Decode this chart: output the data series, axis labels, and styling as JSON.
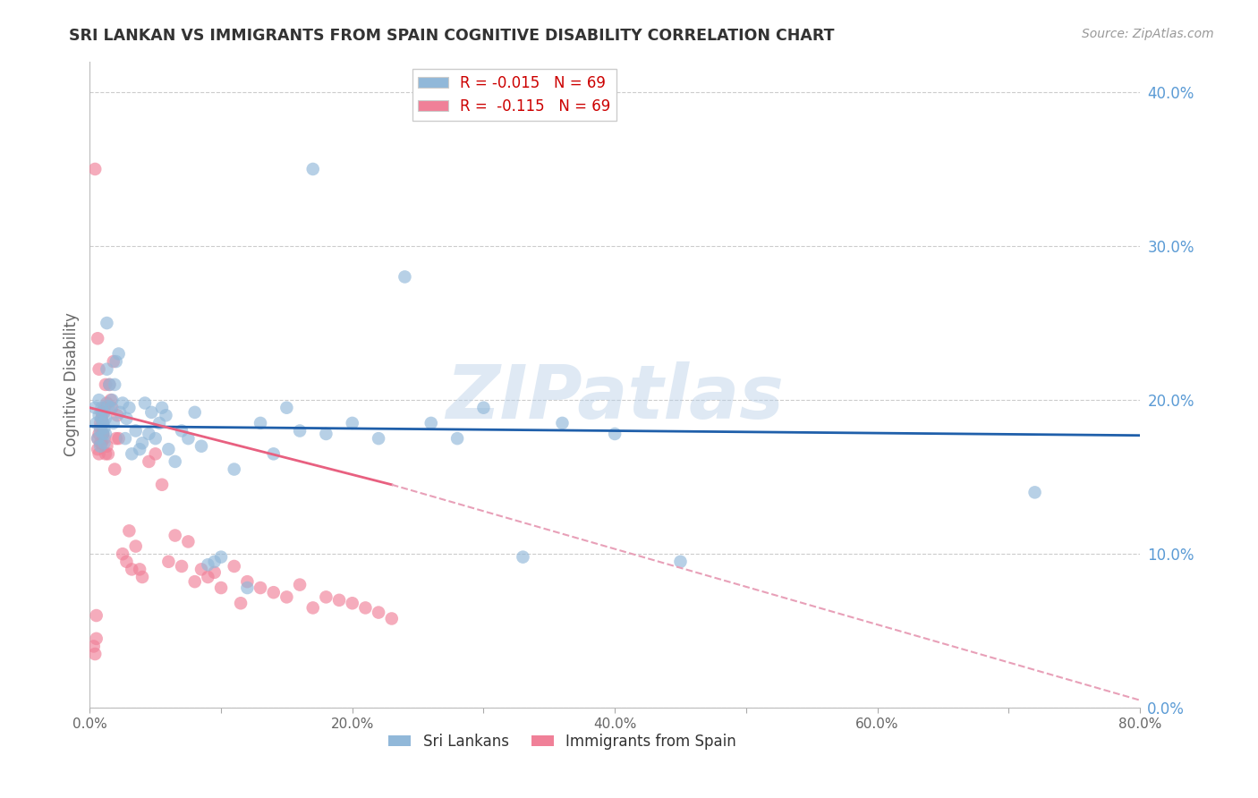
{
  "title": "SRI LANKAN VS IMMIGRANTS FROM SPAIN COGNITIVE DISABILITY CORRELATION CHART",
  "source": "Source: ZipAtlas.com",
  "ylabel": "Cognitive Disability",
  "watermark": "ZIPatlas",
  "xlim": [
    0.0,
    80.0
  ],
  "ylim": [
    0.0,
    42.0
  ],
  "xticks": [
    0.0,
    10.0,
    20.0,
    30.0,
    40.0,
    50.0,
    60.0,
    70.0,
    80.0
  ],
  "xtick_labels": [
    "0.0%",
    "",
    "20.0%",
    "",
    "40.0%",
    "",
    "60.0%",
    "",
    "80.0%"
  ],
  "ytick_labels_right": [
    "0.0%",
    "10.0%",
    "20.0%",
    "30.0%",
    "40.0%"
  ],
  "yticks_right": [
    0.0,
    10.0,
    20.0,
    30.0,
    40.0
  ],
  "sri_lankans_color": "#91b8d9",
  "immigrants_spain_color": "#f08098",
  "trendline_sri_color": "#1f5faa",
  "trendline_spain_solid_color": "#e86080",
  "trendline_spain_dashed_color": "#e8a0b8",
  "background_color": "#ffffff",
  "grid_color": "#cccccc",
  "title_color": "#333333",
  "right_tick_color": "#5b9bd5",
  "sri_lankans_x": [
    0.4,
    0.5,
    0.6,
    0.7,
    0.7,
    0.8,
    0.8,
    0.9,
    0.9,
    1.0,
    1.0,
    1.0,
    1.1,
    1.1,
    1.2,
    1.2,
    1.3,
    1.3,
    1.4,
    1.5,
    1.6,
    1.7,
    1.8,
    1.9,
    2.0,
    2.2,
    2.3,
    2.5,
    2.7,
    2.8,
    3.0,
    3.2,
    3.5,
    3.8,
    4.0,
    4.2,
    4.5,
    4.7,
    5.0,
    5.3,
    5.5,
    5.8,
    6.0,
    6.5,
    7.0,
    7.5,
    8.0,
    8.5,
    9.0,
    9.5,
    10.0,
    11.0,
    12.0,
    13.0,
    14.0,
    15.0,
    16.0,
    17.0,
    18.0,
    20.0,
    22.0,
    24.0,
    26.0,
    28.0,
    30.0,
    33.0,
    36.0,
    40.0,
    45.0,
    72.0
  ],
  "sri_lankans_y": [
    19.5,
    18.5,
    17.5,
    19.0,
    20.0,
    18.0,
    17.0,
    18.8,
    19.5,
    17.8,
    18.5,
    19.2,
    18.2,
    17.2,
    17.8,
    18.8,
    25.0,
    22.0,
    19.6,
    21.0,
    19.5,
    20.0,
    18.5,
    21.0,
    22.5,
    23.0,
    19.2,
    19.8,
    17.5,
    18.8,
    19.5,
    16.5,
    18.0,
    16.8,
    17.2,
    19.8,
    17.8,
    19.2,
    17.5,
    18.5,
    19.5,
    19.0,
    16.8,
    16.0,
    18.0,
    17.5,
    19.2,
    17.0,
    9.3,
    9.5,
    9.8,
    15.5,
    7.8,
    18.5,
    16.5,
    19.5,
    18.0,
    35.0,
    17.8,
    18.5,
    17.5,
    28.0,
    18.5,
    17.5,
    19.5,
    9.8,
    18.5,
    17.8,
    9.5,
    14.0
  ],
  "immigrants_spain_x": [
    0.3,
    0.4,
    0.5,
    0.5,
    0.6,
    0.6,
    0.7,
    0.7,
    0.8,
    0.8,
    0.9,
    0.9,
    1.0,
    1.0,
    1.1,
    1.1,
    1.2,
    1.3,
    1.4,
    1.5,
    1.6,
    1.7,
    1.8,
    1.9,
    2.0,
    2.1,
    2.2,
    2.5,
    2.8,
    3.0,
    3.2,
    3.5,
    3.8,
    4.0,
    4.5,
    5.0,
    5.5,
    6.0,
    6.5,
    7.0,
    7.5,
    8.0,
    8.5,
    9.0,
    9.5,
    10.0,
    11.0,
    11.5,
    12.0,
    13.0,
    14.0,
    15.0,
    16.0,
    17.0,
    18.0,
    19.0,
    20.0,
    21.0,
    22.0,
    23.0,
    0.4,
    0.6,
    0.7,
    0.8,
    0.9,
    1.0,
    1.1,
    1.2,
    1.3
  ],
  "immigrants_spain_y": [
    4.0,
    3.5,
    6.0,
    4.5,
    17.5,
    16.8,
    17.8,
    16.5,
    18.2,
    17.2,
    18.8,
    19.2,
    18.5,
    17.8,
    19.5,
    17.5,
    21.0,
    19.8,
    16.5,
    21.0,
    20.0,
    19.5,
    22.5,
    15.5,
    17.5,
    19.0,
    17.5,
    10.0,
    9.5,
    11.5,
    9.0,
    10.5,
    9.0,
    8.5,
    16.0,
    16.5,
    14.5,
    9.5,
    11.2,
    9.2,
    10.8,
    8.2,
    9.0,
    8.5,
    8.8,
    7.8,
    9.2,
    6.8,
    8.2,
    7.8,
    7.5,
    7.2,
    8.0,
    6.5,
    7.2,
    7.0,
    6.8,
    6.5,
    6.2,
    5.8,
    35.0,
    24.0,
    22.0,
    18.5,
    17.2,
    17.8,
    19.2,
    16.5,
    17.0
  ],
  "sri_trend_x0": 0.0,
  "sri_trend_x1": 80.0,
  "sri_trend_y0": 18.3,
  "sri_trend_y1": 17.7,
  "spain_solid_x0": 0.0,
  "spain_solid_x1": 23.0,
  "spain_solid_y0": 19.5,
  "spain_solid_y1": 14.5,
  "spain_dashed_x0": 23.0,
  "spain_dashed_x1": 80.0,
  "spain_dashed_y0": 14.5,
  "spain_dashed_y1": 0.5
}
